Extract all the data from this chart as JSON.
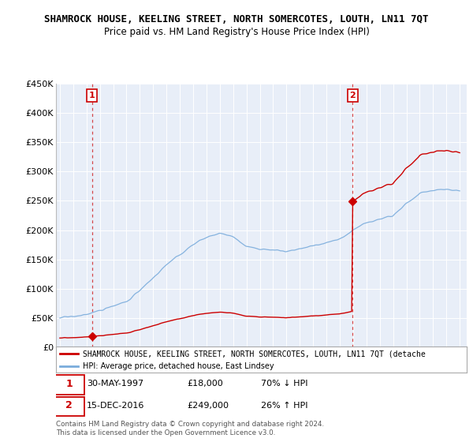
{
  "title": "SHAMROCK HOUSE, KEELING STREET, NORTH SOMERCOTES, LOUTH, LN11 7QT",
  "subtitle": "Price paid vs. HM Land Registry's House Price Index (HPI)",
  "property_color": "#cc0000",
  "hpi_color": "#7aacdc",
  "marker_color": "#cc0000",
  "sale1_year": 1997.42,
  "sale1_price": 18000,
  "sale2_year": 2016.96,
  "sale2_price": 249000,
  "annotation1_label": "1",
  "annotation1_date": "30-MAY-1997",
  "annotation1_price": "£18,000",
  "annotation1_hpi": "70% ↓ HPI",
  "annotation2_label": "2",
  "annotation2_date": "15-DEC-2016",
  "annotation2_price": "£249,000",
  "annotation2_hpi": "26% ↑ HPI",
  "ylim": [
    0,
    450000
  ],
  "xlim_start": 1994.7,
  "xlim_end": 2025.5,
  "legend_line1": "SHAMROCK HOUSE, KEELING STREET, NORTH SOMERCOTES, LOUTH, LN11 7QT (detache",
  "legend_line2": "HPI: Average price, detached house, East Lindsey",
  "footer": "Contains HM Land Registry data © Crown copyright and database right 2024.\nThis data is licensed under the Open Government Licence v3.0.",
  "yticks": [
    0,
    50000,
    100000,
    150000,
    200000,
    250000,
    300000,
    350000,
    400000,
    450000
  ],
  "ytick_labels": [
    "£0",
    "£50K",
    "£100K",
    "£150K",
    "£200K",
    "£250K",
    "£300K",
    "£350K",
    "£400K",
    "£450K"
  ],
  "background_color": "#ffffff",
  "plot_bg_color": "#e8eef8",
  "grid_color": "#ffffff"
}
